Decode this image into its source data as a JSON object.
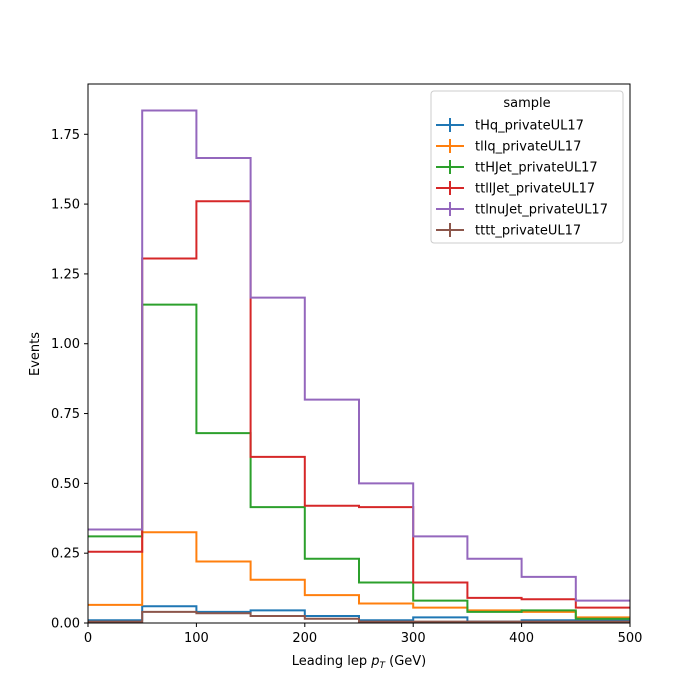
{
  "chart_data": {
    "type": "histogram",
    "title": "",
    "xlabel": "Leading lep",
    "xlabel_symbol": "p",
    "xlabel_subscript": "T",
    "xlabel_unit": "(GeV)",
    "ylabel": "Events",
    "xlim": [
      0,
      500
    ],
    "ylim": [
      0,
      1.93
    ],
    "xticks": [
      "0",
      "100",
      "200",
      "300",
      "400",
      "500"
    ],
    "yticks": [
      "0.00",
      "0.25",
      "0.50",
      "0.75",
      "1.00",
      "1.25",
      "1.50",
      "1.75"
    ],
    "bin_edges": [
      0,
      50,
      100,
      150,
      200,
      250,
      300,
      350,
      400,
      450,
      500
    ],
    "grid": false,
    "legend": {
      "title": "sample",
      "placement": "top-right"
    },
    "series": [
      {
        "name": "tHq_privateUL17",
        "color": "#1f77b4",
        "values": [
          0.01,
          0.06,
          0.04,
          0.045,
          0.025,
          0.01,
          0.02,
          0.005,
          0.01,
          0.01
        ]
      },
      {
        "name": "tllq_privateUL17",
        "color": "#ff7f0e",
        "values": [
          0.065,
          0.325,
          0.22,
          0.155,
          0.1,
          0.07,
          0.055,
          0.045,
          0.04,
          0.02
        ]
      },
      {
        "name": "ttHJet_privateUL17",
        "color": "#2ca02c",
        "values": [
          0.31,
          1.14,
          0.68,
          0.415,
          0.23,
          0.145,
          0.08,
          0.04,
          0.045,
          0.015
        ]
      },
      {
        "name": "ttllJet_privateUL17",
        "color": "#d62728",
        "values": [
          0.255,
          1.305,
          1.51,
          0.595,
          0.42,
          0.415,
          0.145,
          0.09,
          0.085,
          0.055
        ]
      },
      {
        "name": "ttlnuJet_privateUL17",
        "color": "#9467bd",
        "values": [
          0.335,
          1.835,
          1.665,
          1.165,
          0.8,
          0.5,
          0.31,
          0.23,
          0.165,
          0.08
        ]
      },
      {
        "name": "tttt_privateUL17",
        "color": "#8c564b",
        "values": [
          0.005,
          0.04,
          0.035,
          0.025,
          0.015,
          0.005,
          0.005,
          0.005,
          0.005,
          0.005
        ]
      }
    ]
  }
}
